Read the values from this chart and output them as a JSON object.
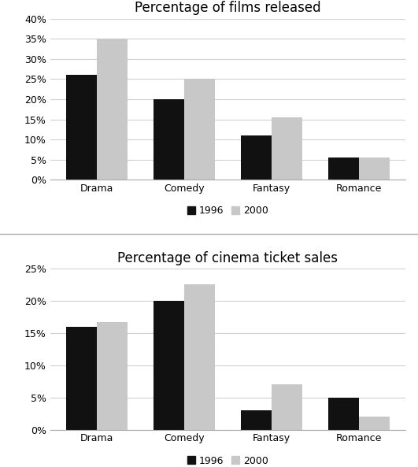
{
  "chart1": {
    "title": "Percentage of films released",
    "categories": [
      "Drama",
      "Comedy",
      "Fantasy",
      "Romance"
    ],
    "values_1996": [
      0.26,
      0.2,
      0.11,
      0.055
    ],
    "values_2000": [
      0.35,
      0.25,
      0.155,
      0.055
    ],
    "ylim": [
      0,
      0.4
    ],
    "yticks": [
      0.0,
      0.05,
      0.1,
      0.15,
      0.2,
      0.25,
      0.3,
      0.35,
      0.4
    ],
    "ytick_labels": [
      "0%",
      "5%",
      "10%",
      "15%",
      "20%",
      "25%",
      "30%",
      "35%",
      "40%"
    ]
  },
  "chart2": {
    "title": "Percentage of cinema ticket sales",
    "categories": [
      "Drama",
      "Comedy",
      "Fantasy",
      "Romance"
    ],
    "values_1996": [
      0.16,
      0.2,
      0.03,
      0.05
    ],
    "values_2000": [
      0.167,
      0.225,
      0.07,
      0.02
    ],
    "ylim": [
      0,
      0.25
    ],
    "yticks": [
      0.0,
      0.05,
      0.1,
      0.15,
      0.2,
      0.25
    ],
    "ytick_labels": [
      "0%",
      "5%",
      "10%",
      "15%",
      "20%",
      "25%"
    ]
  },
  "color_1996": "#111111",
  "color_2000": "#c8c8c8",
  "legend_labels": [
    "1996",
    "2000"
  ],
  "bar_width": 0.35,
  "background_color": "#ffffff",
  "grid_color": "#d0d0d0",
  "title_fontsize": 12,
  "tick_fontsize": 9,
  "legend_fontsize": 9
}
